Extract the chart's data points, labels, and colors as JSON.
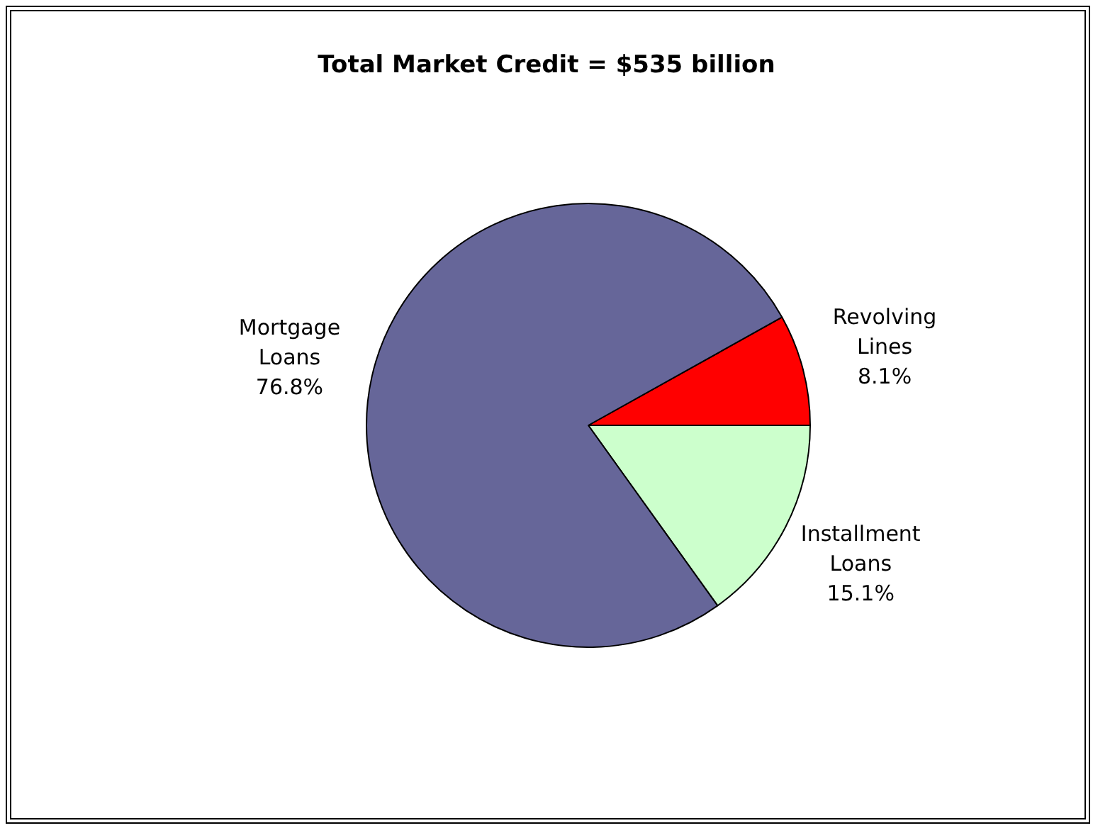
{
  "chart_data": {
    "type": "pie",
    "title": "Total Market Credit = $535 billion",
    "categories": [
      "Revolving Lines",
      "Installment Loans",
      "Mortgage Loans"
    ],
    "values": [
      8.1,
      15.1,
      76.8
    ],
    "colors": [
      "#ff0000",
      "#ccffcc",
      "#666699"
    ],
    "value_labels": [
      "8.1%",
      "15.1%",
      "76.8%"
    ],
    "legend": false
  }
}
